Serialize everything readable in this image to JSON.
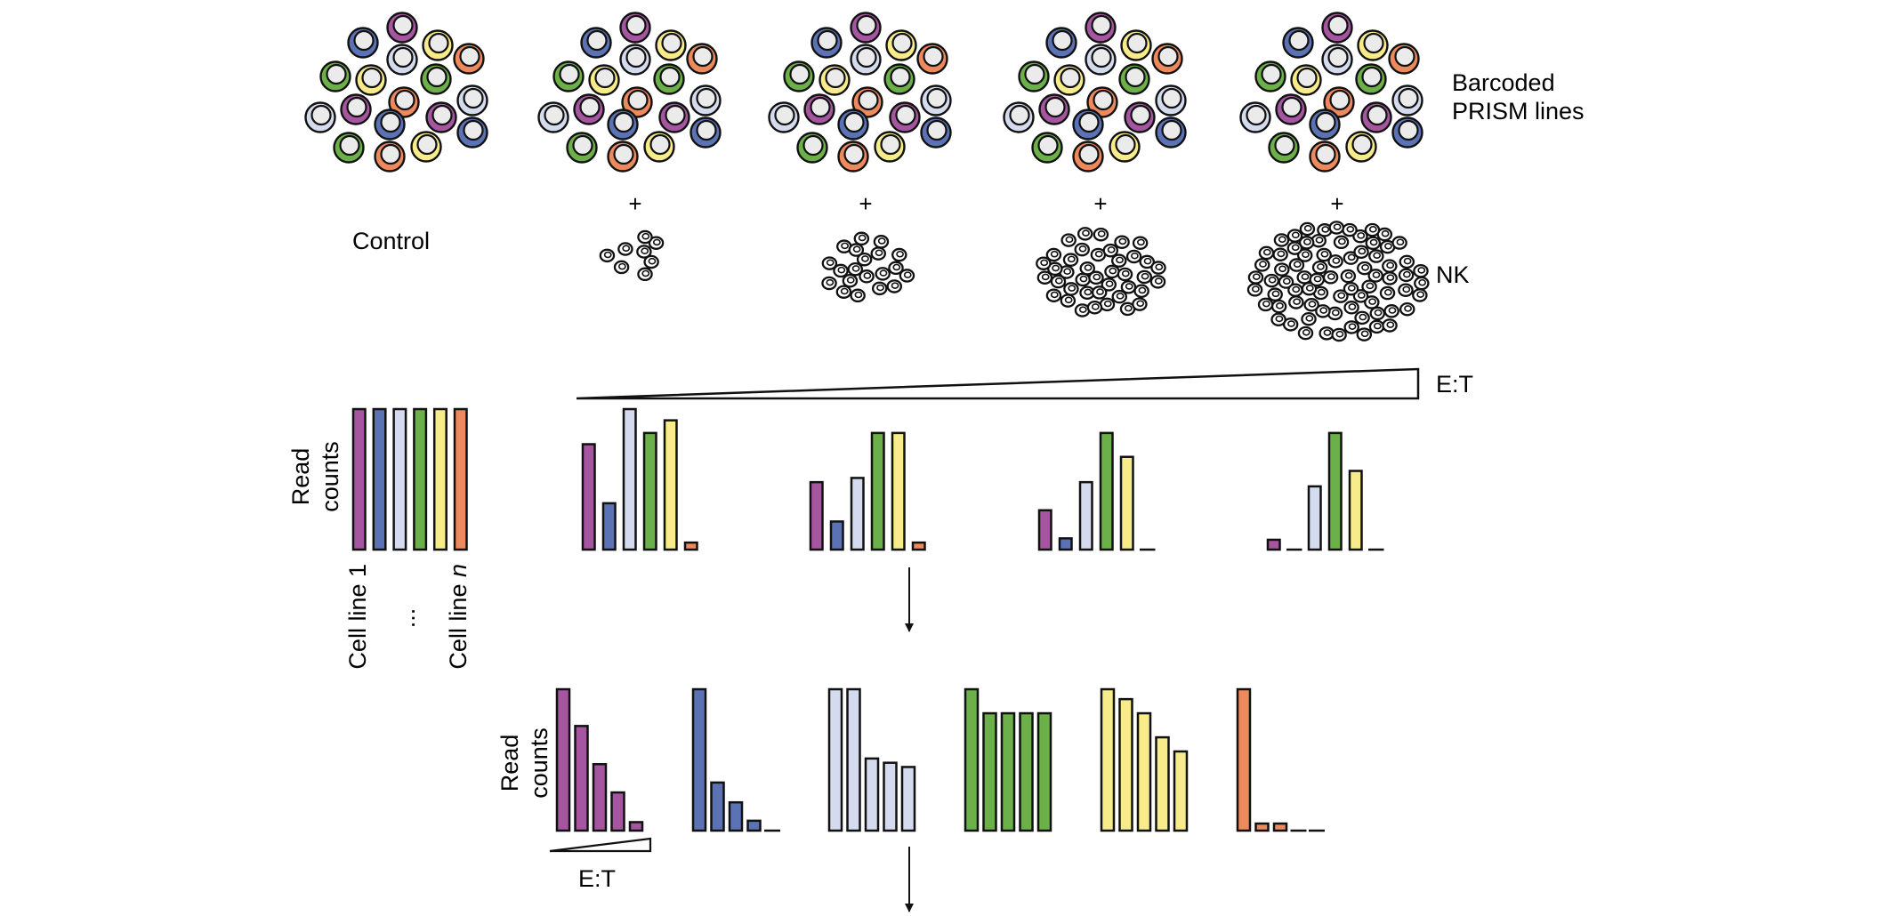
{
  "labels": {
    "barcoded_line1": "Barcoded",
    "barcoded_line2": "PRISM lines",
    "control": "Control",
    "plus": "+",
    "nk": "NK",
    "et_top": "E:T",
    "read_counts_line1": "Read",
    "read_counts_line2": "counts",
    "cell_line_first": "Cell line 1",
    "cell_line_ellipsis": "...",
    "cell_line_last_prefix": "Cell line ",
    "cell_line_last_italic": "n",
    "et_bottom": "E:T"
  },
  "colors": {
    "magenta": "#a656a0",
    "blue": "#5b72b5",
    "lavender": "#d4dbee",
    "green": "#6cb049",
    "yellow": "#f8ec8a",
    "orange": "#ec8a5e",
    "cell_inner": "#ebebeb",
    "stroke": "#111111"
  },
  "cell_line_colors": [
    "magenta",
    "blue",
    "lavender",
    "green",
    "yellow",
    "orange"
  ],
  "nk_cell_counts": [
    0,
    8,
    20,
    45,
    95
  ],
  "chart_data": [
    {
      "type": "bar",
      "name": "control",
      "values": [
        1.0,
        1.0,
        1.0,
        1.0,
        1.0,
        1.0
      ]
    },
    {
      "type": "bar",
      "name": "after_nk_coculture",
      "series": [
        {
          "values": [
            0.75,
            0.33,
            1.0,
            0.83,
            0.92,
            0.05
          ]
        },
        {
          "values": [
            0.48,
            0.2,
            0.51,
            0.83,
            0.83,
            0.05
          ]
        },
        {
          "values": [
            0.28,
            0.08,
            0.48,
            0.83,
            0.66,
            0.0
          ]
        },
        {
          "values": [
            0.07,
            0.0,
            0.45,
            0.83,
            0.56,
            0.0
          ]
        }
      ]
    },
    {
      "type": "bar",
      "name": "per_cell_line_response",
      "series": [
        {
          "values": [
            1.0,
            0.74,
            0.47,
            0.27,
            0.06
          ]
        },
        {
          "values": [
            1.0,
            0.34,
            0.2,
            0.07,
            0.0
          ]
        },
        {
          "values": [
            1.0,
            1.0,
            0.51,
            0.48,
            0.45
          ]
        },
        {
          "values": [
            1.0,
            0.83,
            0.83,
            0.83,
            0.83
          ]
        },
        {
          "values": [
            1.0,
            0.93,
            0.83,
            0.66,
            0.56
          ]
        },
        {
          "values": [
            1.0,
            0.05,
            0.05,
            0.0,
            0.0
          ]
        }
      ]
    }
  ]
}
